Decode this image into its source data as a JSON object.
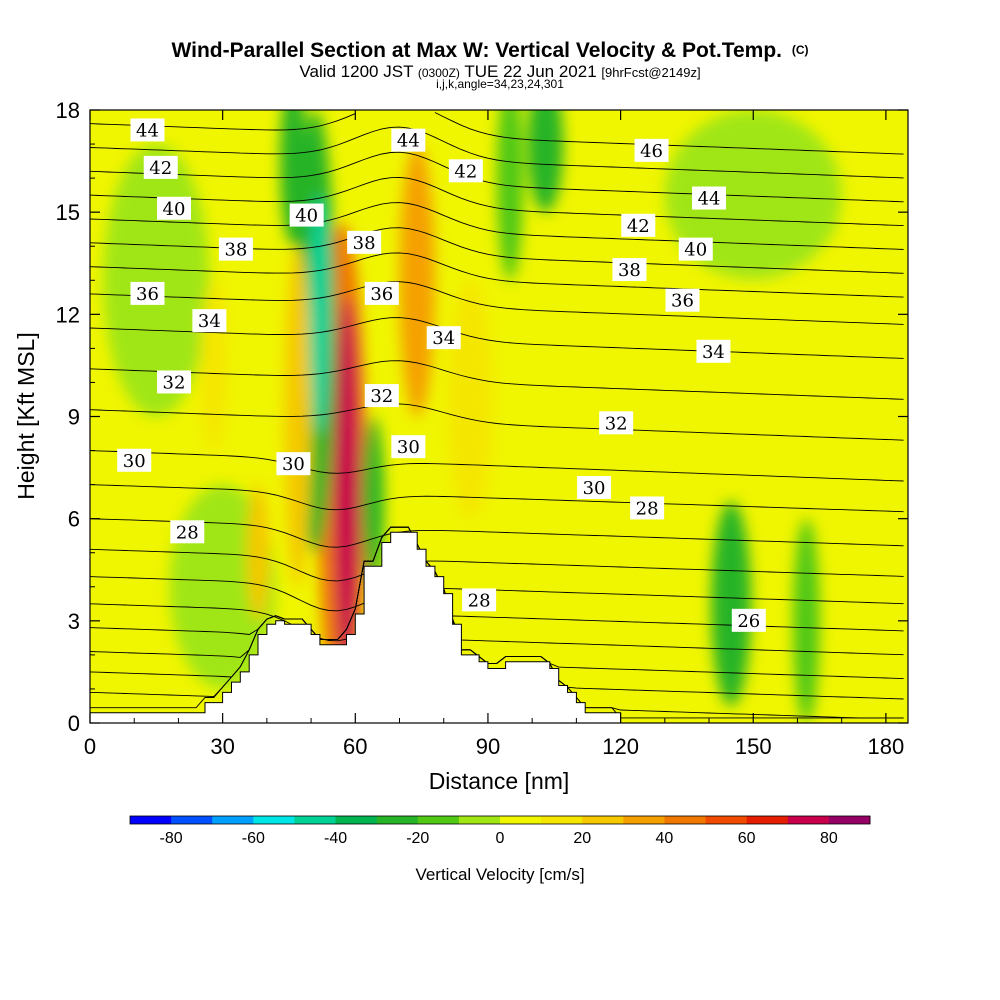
{
  "chart_data": {
    "type": "heatmap",
    "title": "Wind-Parallel Section at Max W: Vertical Velocity & Pot.Temp.",
    "title_mark": "(C)",
    "subtitle_parts": [
      "Valid 1200 JST",
      "(0300Z)",
      "TUE 22 Jun 2021",
      "[9hrFcst@2149z]"
    ],
    "subtitle2": "i,j,k,angle=34,23,24,301",
    "xlabel": "Distance [nm]",
    "ylabel": "Height [Kft MSL]",
    "xlim": [
      0,
      185
    ],
    "ylim": [
      0,
      18
    ],
    "xticks": [
      0,
      30,
      60,
      90,
      120,
      150,
      180
    ],
    "yticks": [
      0,
      3,
      6,
      9,
      12,
      15,
      18
    ],
    "colorbar": {
      "label": "Vertical Velocity [cm/s]",
      "ticks": [
        -80,
        -60,
        -40,
        -20,
        0,
        20,
        40,
        60,
        80
      ],
      "levels": [
        -90,
        -80,
        -70,
        -60,
        -50,
        -40,
        -30,
        -20,
        -10,
        0,
        10,
        20,
        30,
        40,
        50,
        60,
        70,
        80,
        90
      ],
      "colors": [
        "#0000ff",
        "#0050ff",
        "#00a0ff",
        "#00e6e6",
        "#00d296",
        "#00b450",
        "#28b428",
        "#50c814",
        "#a0e614",
        "#f0f500",
        "#f5e600",
        "#f5c800",
        "#f5a000",
        "#f07800",
        "#f04b00",
        "#e61e00",
        "#c8004b",
        "#960064"
      ]
    },
    "terrain_profile": {
      "x": [
        0,
        26,
        26,
        30,
        30,
        32,
        32,
        34,
        34,
        36,
        36,
        38,
        38,
        40,
        40,
        42,
        42,
        44,
        44,
        50,
        50,
        52,
        52,
        54,
        54,
        58,
        58,
        60,
        60,
        62,
        62,
        66,
        66,
        68,
        68,
        74,
        74,
        76,
        76,
        78,
        78,
        80,
        80,
        82,
        82,
        84,
        84,
        88,
        88,
        90,
        90,
        94,
        94,
        96,
        96,
        98,
        98,
        104,
        104,
        106,
        106,
        108,
        108,
        110,
        110,
        112,
        112,
        120,
        120,
        185
      ],
      "y": [
        0.3,
        0.3,
        0.6,
        0.6,
        0.9,
        0.9,
        1.2,
        1.2,
        1.5,
        1.5,
        2.0,
        2.0,
        2.6,
        2.6,
        2.9,
        2.9,
        3.0,
        3.0,
        2.9,
        2.9,
        2.6,
        2.6,
        2.3,
        2.3,
        2.3,
        2.3,
        2.6,
        2.6,
        3.2,
        3.2,
        4.6,
        4.6,
        5.3,
        5.3,
        5.6,
        5.6,
        5.1,
        5.1,
        4.6,
        4.6,
        4.3,
        4.3,
        3.8,
        3.8,
        2.9,
        2.9,
        2.0,
        2.0,
        1.8,
        1.8,
        1.6,
        1.6,
        1.8,
        1.8,
        1.8,
        1.8,
        1.8,
        1.8,
        1.6,
        1.6,
        1.1,
        1.1,
        0.9,
        0.9,
        0.6,
        0.6,
        0.3,
        0.3,
        0.0,
        0.0
      ]
    },
    "velocity_features": [
      {
        "x": 58,
        "y": 7.0,
        "rx": 3.0,
        "ry": 5.5,
        "value": 72
      },
      {
        "x": 57,
        "y": 7.2,
        "rx": 5.5,
        "ry": 7.5,
        "value": 42
      },
      {
        "x": 52,
        "y": 12.0,
        "rx": 2.5,
        "ry": 3.5,
        "value": -46
      },
      {
        "x": 51,
        "y": 11.5,
        "rx": 4.5,
        "ry": 6.5,
        "value": -24
      },
      {
        "x": 64,
        "y": 6.5,
        "rx": 2.5,
        "ry": 2.5,
        "value": -22
      },
      {
        "x": 74,
        "y": 13.0,
        "rx": 4.0,
        "ry": 4.0,
        "value": 32
      },
      {
        "x": 86,
        "y": 9.5,
        "rx": 5.0,
        "ry": 3.5,
        "value": 16
      },
      {
        "x": 47,
        "y": 9.0,
        "rx": 3.0,
        "ry": 5.0,
        "value": 24
      },
      {
        "x": 28,
        "y": 10.5,
        "rx": 3.0,
        "ry": 2.5,
        "value": 18
      },
      {
        "x": 38,
        "y": 5.0,
        "rx": 2.5,
        "ry": 2.0,
        "value": 20
      },
      {
        "x": 46,
        "y": 16.5,
        "rx": 3.0,
        "ry": 2.5,
        "value": -22
      },
      {
        "x": 103,
        "y": 17.0,
        "rx": 4.0,
        "ry": 2.0,
        "value": -22
      },
      {
        "x": 145,
        "y": 3.5,
        "rx": 4.5,
        "ry": 3.0,
        "value": -24
      },
      {
        "x": 162,
        "y": 3.0,
        "rx": 3.0,
        "ry": 3.0,
        "value": -20
      },
      {
        "x": 95,
        "y": 16.0,
        "rx": 3.0,
        "ry": 3.0,
        "value": -14
      },
      {
        "x": 160,
        "y": 11.0,
        "rx": 25.0,
        "ry": 3.0,
        "value": 4
      },
      {
        "x": 150,
        "y": 15.5,
        "rx": 20.0,
        "ry": 2.5,
        "value": -8
      },
      {
        "x": 15,
        "y": 13.0,
        "rx": 12.0,
        "ry": 4.0,
        "value": -6
      },
      {
        "x": 30,
        "y": 4.0,
        "rx": 12.0,
        "ry": 3.0,
        "value": -6
      }
    ],
    "theta_labels": [
      {
        "text": "44",
        "x": 13,
        "y": 17.4
      },
      {
        "text": "42",
        "x": 16,
        "y": 16.3
      },
      {
        "text": "40",
        "x": 19,
        "y": 15.1
      },
      {
        "text": "38",
        "x": 33,
        "y": 13.9
      },
      {
        "text": "36",
        "x": 13,
        "y": 12.6
      },
      {
        "text": "34",
        "x": 27,
        "y": 11.8
      },
      {
        "text": "32",
        "x": 19,
        "y": 10.0
      },
      {
        "text": "30",
        "x": 10,
        "y": 7.7
      },
      {
        "text": "28",
        "x": 22,
        "y": 5.6
      },
      {
        "text": "44",
        "x": 72,
        "y": 17.1
      },
      {
        "text": "40",
        "x": 49,
        "y": 14.9
      },
      {
        "text": "38",
        "x": 62,
        "y": 14.1
      },
      {
        "text": "36",
        "x": 66,
        "y": 12.6
      },
      {
        "text": "30",
        "x": 46,
        "y": 7.6
      },
      {
        "text": "42",
        "x": 85,
        "y": 16.2
      },
      {
        "text": "34",
        "x": 80,
        "y": 11.3
      },
      {
        "text": "32",
        "x": 66,
        "y": 9.6
      },
      {
        "text": "30",
        "x": 72,
        "y": 8.1
      },
      {
        "text": "28",
        "x": 88,
        "y": 3.6
      },
      {
        "text": "46",
        "x": 127,
        "y": 16.8
      },
      {
        "text": "44",
        "x": 140,
        "y": 15.4
      },
      {
        "text": "42",
        "x": 124,
        "y": 14.6
      },
      {
        "text": "40",
        "x": 137,
        "y": 13.9
      },
      {
        "text": "38",
        "x": 122,
        "y": 13.3
      },
      {
        "text": "36",
        "x": 134,
        "y": 12.4
      },
      {
        "text": "34",
        "x": 141,
        "y": 10.9
      },
      {
        "text": "32",
        "x": 119,
        "y": 8.8
      },
      {
        "text": "30",
        "x": 114,
        "y": 6.9
      },
      {
        "text": "28",
        "x": 126,
        "y": 6.3
      },
      {
        "text": "26",
        "x": 149,
        "y": 3.0
      }
    ]
  }
}
